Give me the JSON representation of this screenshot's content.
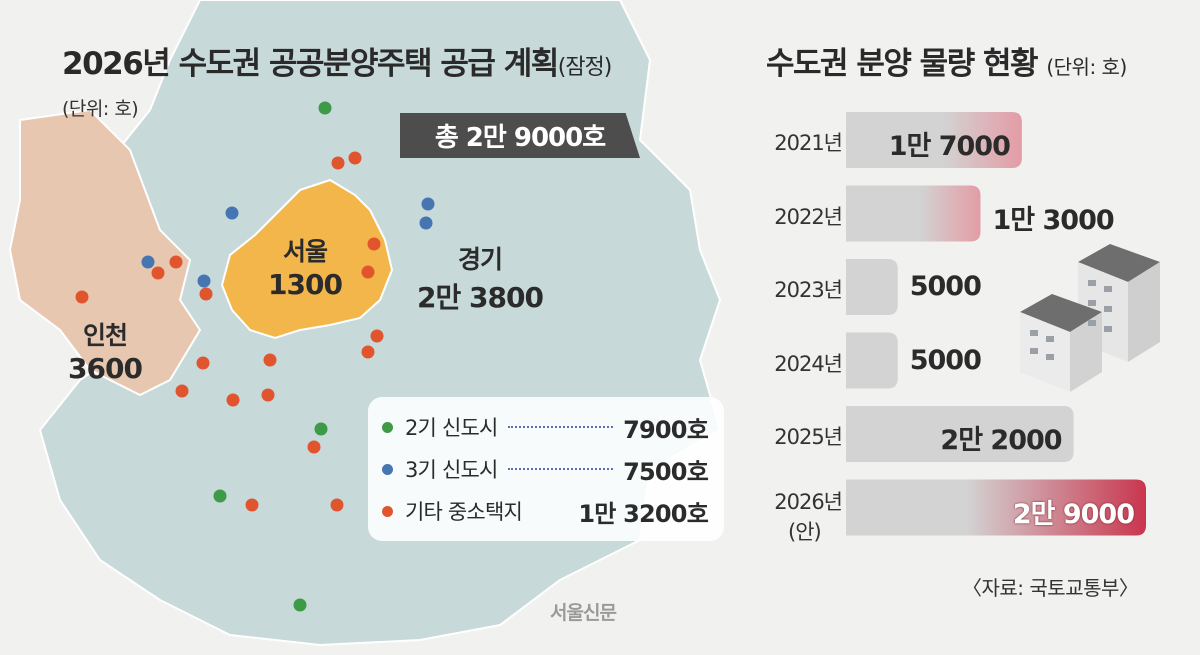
{
  "colors": {
    "gyeonggi": "#c7d9d9",
    "seoul": "#f3b64b",
    "incheon": "#e8c7b0",
    "sea": "#f1f1f0",
    "bar_gray": "#d3d3d3",
    "bar_pink": "#e39ca5",
    "bar_red": "#c9364e",
    "dot_green": "#3d9a47",
    "dot_blue": "#4676b2",
    "dot_orange": "#e1552e"
  },
  "map": {
    "title": "2026년 수도권 공공분양주택 공급 계획",
    "title_sub": "(잠정)",
    "unit": "(단위: 호)",
    "total": "총 2만 9000호",
    "regions": [
      {
        "name": "서울",
        "value": "1300"
      },
      {
        "name": "경기",
        "value": "2만 3800"
      },
      {
        "name": "인천",
        "value": "3600"
      }
    ],
    "legend": [
      {
        "label": "2기 신도시",
        "value": "7900호",
        "color": "#3d9a47"
      },
      {
        "label": "3기 신도시",
        "value": "7500호",
        "color": "#4676b2"
      },
      {
        "label": "기타 중소택지",
        "value": "1만 3200호",
        "color": "#e1552e"
      }
    ],
    "logo": "서울신문"
  },
  "chart_data": {
    "type": "bar",
    "orientation": "horizontal",
    "title": "수도권 분양 물량 현황",
    "unit": "(단위: 호)",
    "categories": [
      "2021년",
      "2022년",
      "2023년",
      "2024년",
      "2025년",
      "2026년"
    ],
    "category_notes": [
      "",
      "",
      "",
      "",
      "",
      "(안)"
    ],
    "values": [
      17000,
      13000,
      5000,
      5000,
      22000,
      29000
    ],
    "value_labels": [
      "1만 7000",
      "1만 3000",
      "5000",
      "5000",
      "2만 2000",
      "2만 9000"
    ],
    "highlight": "2026년",
    "xlim": [
      0,
      29000
    ],
    "grid": false,
    "source": "〈자료: 국토교통부〉"
  }
}
